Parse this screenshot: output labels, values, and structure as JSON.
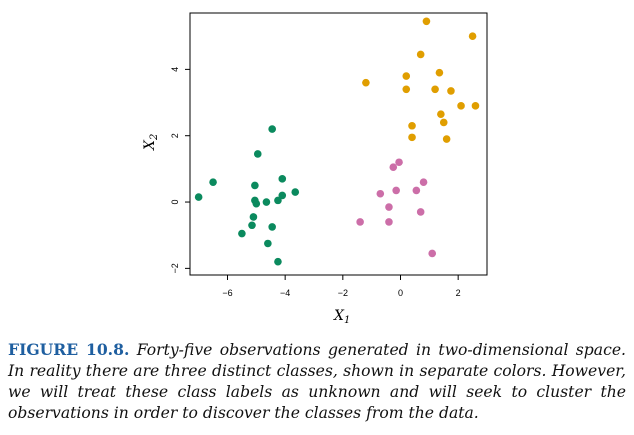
{
  "chart_data": {
    "type": "scatter",
    "xlabel": "X",
    "xlabel_sub": "1",
    "ylabel": "X",
    "ylabel_sub": "2",
    "xlim": [
      -7.3,
      3.0
    ],
    "ylim": [
      -2.2,
      5.7
    ],
    "xticks": [
      -6,
      -4,
      -2,
      0,
      2
    ],
    "xtick_labels": [
      "−6",
      "−4",
      "−2",
      "0",
      "2"
    ],
    "yticks": [
      -2,
      0,
      2,
      4
    ],
    "ytick_labels": [
      "−2",
      "0",
      "2",
      "4"
    ],
    "grid": false,
    "series": [
      {
        "color": "#0b8a5e",
        "points": [
          [
            -7.0,
            0.15
          ],
          [
            -6.5,
            0.6
          ],
          [
            -5.05,
            0.05
          ],
          [
            -5.05,
            0.5
          ],
          [
            -5.0,
            -0.05
          ],
          [
            -4.95,
            1.45
          ],
          [
            -5.1,
            -0.45
          ],
          [
            -5.15,
            -0.7
          ],
          [
            -5.5,
            -0.95
          ],
          [
            -4.65,
            0.0
          ],
          [
            -4.6,
            -1.25
          ],
          [
            -4.45,
            2.2
          ],
          [
            -4.45,
            -0.75
          ],
          [
            -4.25,
            0.05
          ],
          [
            -4.1,
            0.2
          ],
          [
            -4.1,
            0.7
          ],
          [
            -3.65,
            0.3
          ],
          [
            -4.25,
            -1.8
          ]
        ]
      },
      {
        "color": "#e09e00",
        "points": [
          [
            0.9,
            5.45
          ],
          [
            2.5,
            5.0
          ],
          [
            0.7,
            4.45
          ],
          [
            1.35,
            3.9
          ],
          [
            0.2,
            3.8
          ],
          [
            -1.2,
            3.6
          ],
          [
            0.2,
            3.4
          ],
          [
            1.2,
            3.4
          ],
          [
            1.75,
            3.35
          ],
          [
            2.1,
            2.9
          ],
          [
            2.6,
            2.9
          ],
          [
            1.4,
            2.65
          ],
          [
            1.5,
            2.4
          ],
          [
            0.4,
            2.3
          ],
          [
            0.4,
            1.95
          ],
          [
            1.6,
            1.9
          ]
        ]
      },
      {
        "color": "#cc6ea8",
        "points": [
          [
            -0.05,
            1.2
          ],
          [
            -0.25,
            1.05
          ],
          [
            0.8,
            0.6
          ],
          [
            -0.7,
            0.25
          ],
          [
            -0.15,
            0.35
          ],
          [
            0.55,
            0.35
          ],
          [
            -0.4,
            -0.15
          ],
          [
            0.7,
            -0.3
          ],
          [
            -1.4,
            -0.6
          ],
          [
            -0.4,
            -0.6
          ],
          [
            1.1,
            -1.55
          ]
        ]
      }
    ]
  },
  "caption": {
    "label": "FIGURE 10.8.",
    "text": "Forty-five observations generated in two-dimensional space. In reality there are three distinct classes, shown in separate colors. However, we will treat these class labels as unknown and will seek to cluster the observations in order to discover the classes from the data."
  }
}
